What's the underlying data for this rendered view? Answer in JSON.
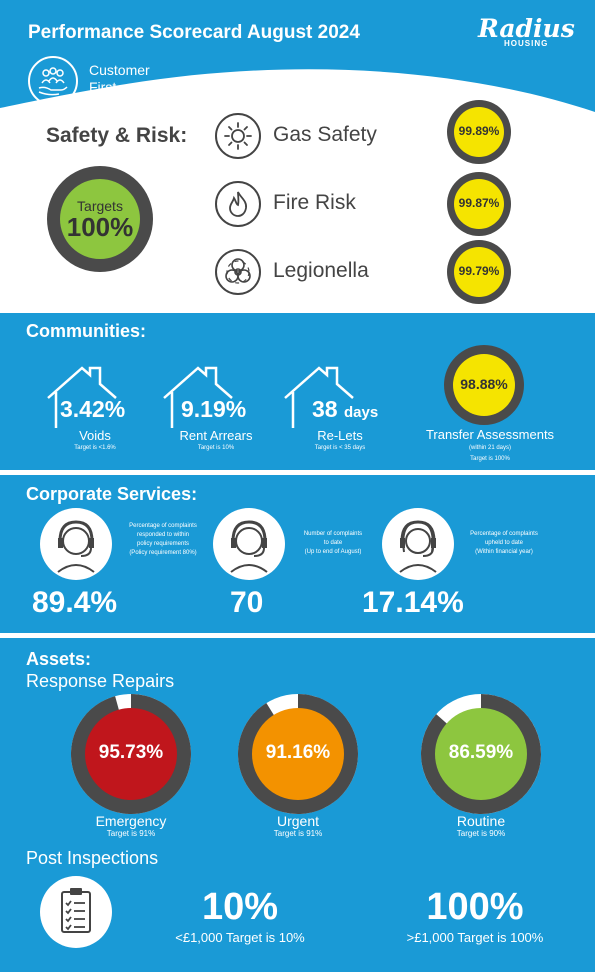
{
  "header": {
    "title": "Performance Scorecard August 2024",
    "logo_main": "Radius",
    "logo_sub": "HOUSING",
    "badge": [
      "Customer",
      "First"
    ]
  },
  "safety": {
    "heading": "Safety & Risk:",
    "targets_label": "Targets",
    "targets_value": "100%",
    "items": [
      {
        "label": "Gas Safety",
        "value": "99.89%",
        "icon": "sun-icon"
      },
      {
        "label": "Fire Risk",
        "value": "99.87%",
        "icon": "flame-icon"
      },
      {
        "label": "Legionella",
        "value": "99.79%",
        "icon": "biohazard-icon"
      }
    ]
  },
  "communities": {
    "heading": "Communities:",
    "voids": {
      "value": "3.42%",
      "label": "Voids",
      "target": "Target is <1.6%"
    },
    "arrears": {
      "value": "9.19%",
      "label": "Rent Arrears",
      "target": "Target is 10%"
    },
    "relets": {
      "value": "38",
      "unit": "days",
      "label": "Re-Lets",
      "target": "Target is < 35 days"
    },
    "transfer": {
      "value": "98.88%",
      "label": "Transfer Assessments",
      "note": "(within 21 days)",
      "target": "Target is 100%"
    }
  },
  "corporate": {
    "heading": "Corporate Services:",
    "items": [
      {
        "value": "89.4%",
        "desc": [
          "Percentage of complaints",
          "responded to within",
          "policy requirements",
          "(Policy requirement 80%)"
        ]
      },
      {
        "value": "70",
        "desc": [
          "Number of complaints",
          "to date",
          "(Up to end of August)"
        ]
      },
      {
        "value": "17.14%",
        "desc": [
          "Percentage of complaints",
          "upheld to date",
          "(Within financial year)"
        ]
      }
    ]
  },
  "assets": {
    "heading": "Assets:",
    "subheading": "Response Repairs",
    "repairs": [
      {
        "value": "95.73%",
        "label": "Emergency",
        "target": "Target is 91%",
        "color": "#c0161c",
        "progress": 0.9573
      },
      {
        "value": "91.16%",
        "label": "Urgent",
        "target": "Target is 91%",
        "color": "#f39200",
        "progress": 0.9116
      },
      {
        "value": "86.59%",
        "label": "Routine",
        "target": "Target is 90%",
        "color": "#8dc63f",
        "progress": 0.8659
      }
    ],
    "post_heading": "Post Inspections",
    "post": [
      {
        "value": "10%",
        "label": "<£1,000 Target is 10%"
      },
      {
        "value": "100%",
        "label": ">£1,000 Target is 100%"
      }
    ]
  },
  "colors": {
    "blue": "#1a9ad6",
    "yellow": "#f5e400",
    "green": "#8dc63f",
    "ring": "#4a4a4a"
  }
}
